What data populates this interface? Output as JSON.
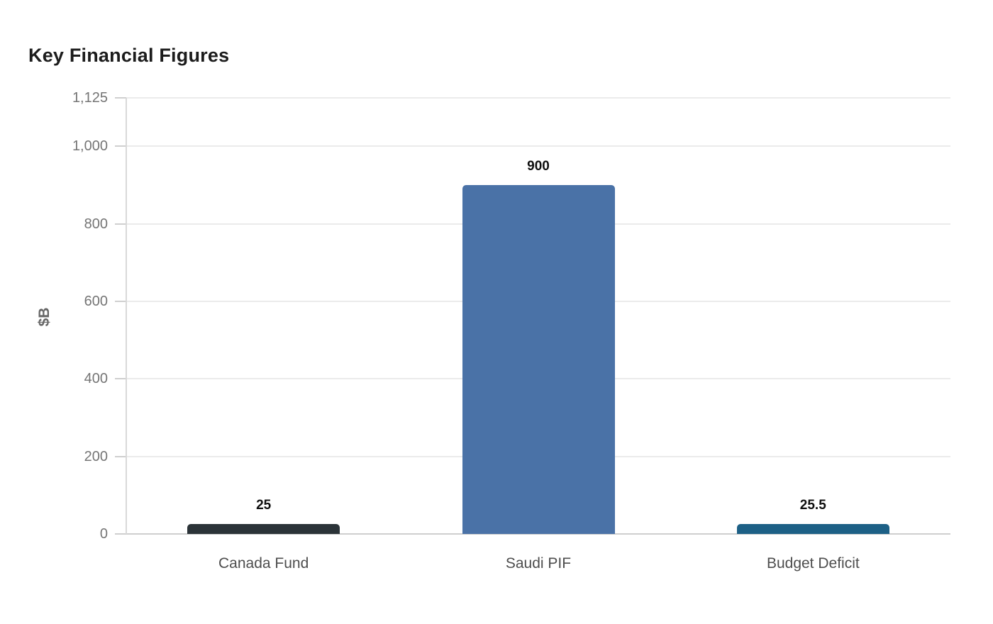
{
  "chart_data": {
    "type": "bar",
    "title": "Key Financial Figures",
    "ylabel": "$B",
    "xlabel": "",
    "categories": [
      "Canada Fund",
      "Saudi PIF",
      "Budget Deficit"
    ],
    "values": [
      25,
      900,
      25.5
    ],
    "value_labels": [
      "25",
      "900",
      "25.5"
    ],
    "bar_colors": [
      "#2b3338",
      "#4a72a7",
      "#1d6086"
    ],
    "ylim": [
      0,
      1125
    ],
    "yticks": [
      {
        "value": 0,
        "label": "0"
      },
      {
        "value": 200,
        "label": "200"
      },
      {
        "value": 400,
        "label": "400"
      },
      {
        "value": 600,
        "label": "600"
      },
      {
        "value": 800,
        "label": "800"
      },
      {
        "value": 1000,
        "label": "1,000"
      },
      {
        "value": 1125,
        "label": "1,125"
      }
    ],
    "grid": true,
    "legend": false,
    "colors": {
      "title": "#1c1c1c",
      "tick_label": "#757575",
      "category_label": "#4d4d4d",
      "value_label": "#0f0f0f",
      "gridline": "#ebebeb",
      "zero_line": "#cfcfcf",
      "axis_line": "#d9d9d9",
      "axis_title": "#666666",
      "background": "#ffffff"
    }
  }
}
